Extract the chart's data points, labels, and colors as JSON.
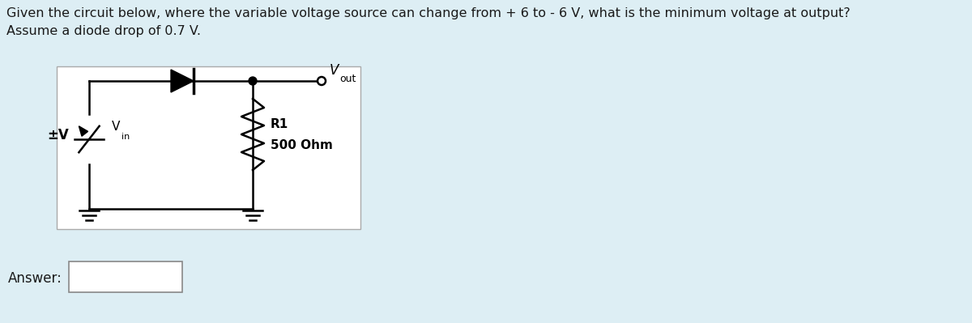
{
  "title_line1": "Given the circuit below, where the variable voltage source can change from + 6 to - 6 V, what is the minimum voltage at output?",
  "title_line2": "Assume a diode drop of 0.7 V.",
  "answer_label": "Answer:",
  "vout_label": "V",
  "vout_sub": "out",
  "r1_label": "R1",
  "r1_value": "500 Ohm",
  "vin_label": "V",
  "vin_sub": "in",
  "pm_label": "±V",
  "bg_color": "#ddeef4",
  "circuit_bg": "#ffffff",
  "text_color": "#1a1a1a",
  "ans_box_color": "#888888"
}
